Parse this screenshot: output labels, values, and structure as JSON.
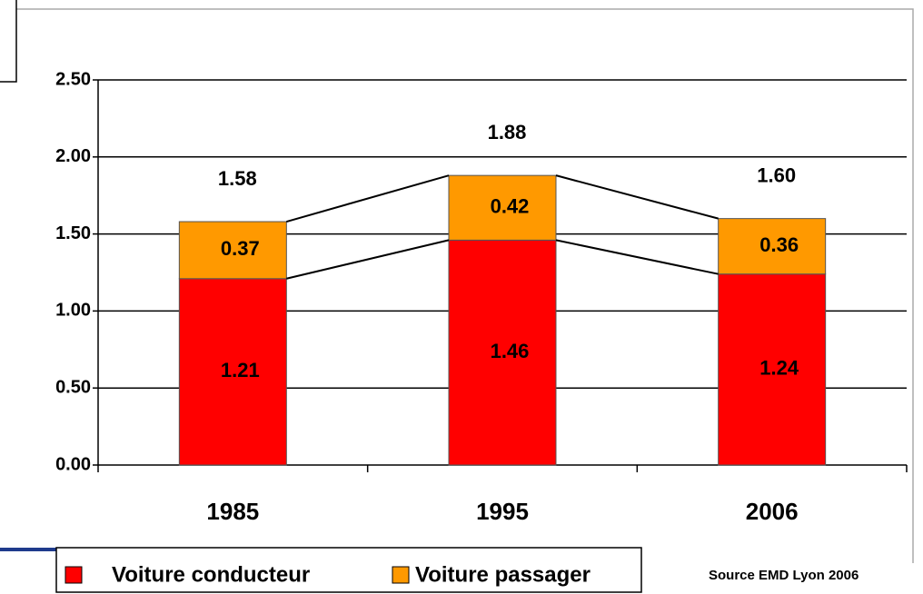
{
  "chart_data": {
    "type": "stacked_bar",
    "categories": [
      "1985",
      "1995",
      "2006"
    ],
    "series": [
      {
        "name": "Voiture conducteur",
        "color": "#ff0000",
        "values": [
          1.21,
          1.46,
          1.24
        ],
        "value_labels": [
          "1.21",
          "1.46",
          "1.24"
        ]
      },
      {
        "name": "Voiture passager",
        "color": "#ff9900",
        "values": [
          0.37,
          0.42,
          0.36
        ],
        "value_labels": [
          "0.37",
          "0.42",
          "0.36"
        ]
      }
    ],
    "totals": {
      "values": [
        1.58,
        1.88,
        1.6
      ],
      "value_labels": [
        "1.58",
        "1.88",
        "1.60"
      ]
    },
    "ylim": [
      0,
      2.5
    ],
    "yticks": [
      {
        "value": 0,
        "label": "0.00"
      },
      {
        "value": 0.5,
        "label": "0.50"
      },
      {
        "value": 1,
        "label": "1.00"
      },
      {
        "value": 1.5,
        "label": "1.50"
      },
      {
        "value": 2,
        "label": "2.00"
      },
      {
        "value": 2.5,
        "label": "2.50"
      }
    ],
    "grid": true,
    "source": "Source EMD Lyon 2006"
  }
}
